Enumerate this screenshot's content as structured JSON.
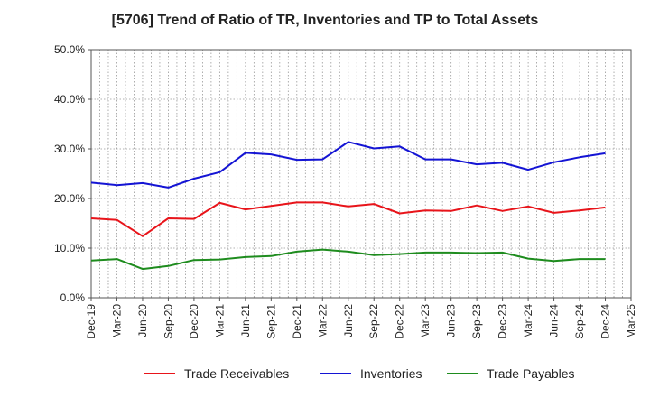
{
  "chart_data": {
    "type": "line",
    "title": "[5706]  Trend of Ratio of TR, Inventories and TP to Total Assets",
    "xlabel": "",
    "ylabel": "",
    "ylim": [
      0,
      50
    ],
    "y_ticks": [
      "0.0%",
      "10.0%",
      "20.0%",
      "30.0%",
      "40.0%",
      "50.0%"
    ],
    "y_tick_values": [
      0,
      10,
      20,
      30,
      40,
      50
    ],
    "x_ticks": [
      "Dec-19",
      "Mar-20",
      "Jun-20",
      "Sep-20",
      "Dec-20",
      "Mar-21",
      "Jun-21",
      "Sep-21",
      "Dec-21",
      "Mar-22",
      "Jun-22",
      "Sep-22",
      "Dec-22",
      "Mar-23",
      "Jun-23",
      "Sep-23",
      "Dec-23",
      "Mar-24",
      "Jun-24",
      "Sep-24",
      "Dec-24",
      "Mar-25"
    ],
    "grid": true,
    "legend_position": "bottom",
    "x": [
      "Dec-19",
      "Mar-20",
      "Jun-20",
      "Sep-20",
      "Dec-20",
      "Mar-21",
      "Jun-21",
      "Sep-21",
      "Dec-21",
      "Mar-22",
      "Jun-22",
      "Sep-22",
      "Dec-22",
      "Mar-23",
      "Jun-23",
      "Sep-23",
      "Dec-23",
      "Mar-24",
      "Jun-24",
      "Sep-24",
      "Dec-24"
    ],
    "series": [
      {
        "name": "Trade Receivables",
        "color": "#e8141a",
        "values": [
          16.0,
          15.7,
          12.4,
          16.0,
          15.9,
          19.1,
          17.8,
          18.5,
          19.2,
          19.2,
          18.4,
          18.9,
          17.0,
          17.6,
          17.5,
          18.6,
          17.5,
          18.4,
          17.1,
          17.6,
          18.2
        ]
      },
      {
        "name": "Inventories",
        "color": "#1414d4",
        "values": [
          23.2,
          22.7,
          23.1,
          22.2,
          24.0,
          25.3,
          29.2,
          28.9,
          27.8,
          27.9,
          31.4,
          30.1,
          30.5,
          27.9,
          27.9,
          26.9,
          27.2,
          25.8,
          27.3,
          28.3,
          29.1
        ]
      },
      {
        "name": "Trade Payables",
        "color": "#1e8c1e",
        "values": [
          7.5,
          7.8,
          5.8,
          6.4,
          7.6,
          7.7,
          8.2,
          8.4,
          9.3,
          9.7,
          9.3,
          8.6,
          8.8,
          9.1,
          9.1,
          9.0,
          9.1,
          7.9,
          7.4,
          7.8,
          7.8
        ]
      }
    ]
  }
}
